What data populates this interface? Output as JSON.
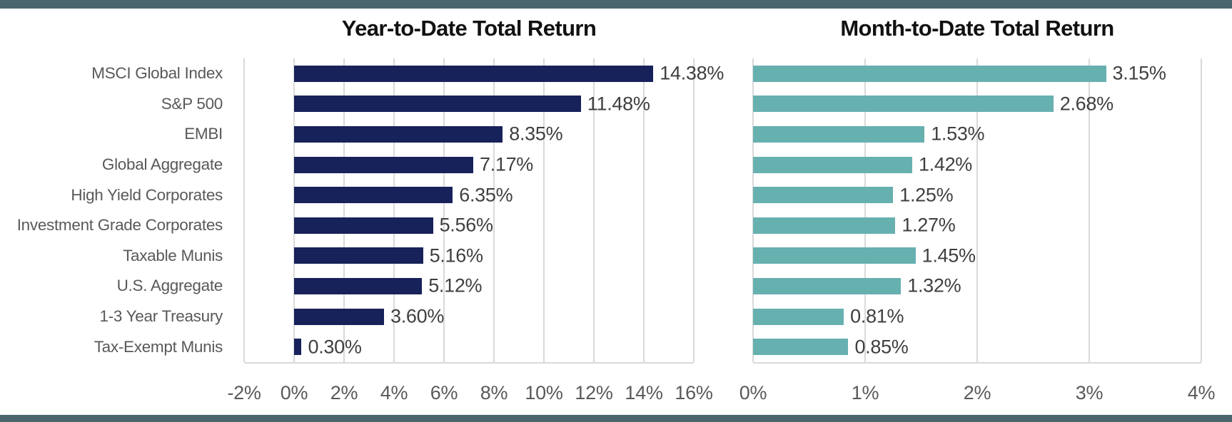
{
  "page": {
    "background": "#FFFFFF",
    "accent_strip_color": "#4A656E"
  },
  "colors": {
    "ytd_bar": "#17215A",
    "mtd_bar": "#67B0B0",
    "gridline": "#D9D9D9",
    "category_label": "#595959",
    "tick_label": "#595959",
    "value_label": "#3F3F3F",
    "title": "#111111"
  },
  "chart_data": [
    {
      "type": "bar",
      "orientation": "horizontal",
      "title": "Year-to-Date Total Return",
      "categories": [
        "MSCI Global Index",
        "S&P 500",
        "EMBI",
        "Global Aggregate",
        "High Yield Corporates",
        "Investment Grade Corporates",
        "Taxable Munis",
        "U.S. Aggregate",
        "1-3 Year Treasury",
        "Tax-Exempt Munis"
      ],
      "values": [
        14.38,
        11.48,
        8.35,
        7.17,
        6.35,
        5.56,
        5.16,
        5.12,
        3.6,
        0.3
      ],
      "value_labels": [
        "14.38%",
        "11.48%",
        "8.35%",
        "7.17%",
        "6.35%",
        "5.56%",
        "5.16%",
        "5.12%",
        "3.60%",
        "0.30%"
      ],
      "bar_color": "#17215A",
      "xlim": [
        -2,
        16
      ],
      "x_tick_values": [
        -2,
        0,
        2,
        4,
        6,
        8,
        10,
        12,
        14,
        16
      ],
      "x_ticks": [
        "-2%",
        "0%",
        "2%",
        "4%",
        "6%",
        "8%",
        "10%",
        "12%",
        "14%",
        "16%"
      ],
      "grid": true,
      "legend": "none",
      "show_category_labels": true
    },
    {
      "type": "bar",
      "orientation": "horizontal",
      "title": "Month-to-Date Total Return",
      "categories": [
        "MSCI Global Index",
        "S&P 500",
        "EMBI",
        "Global Aggregate",
        "High Yield Corporates",
        "Investment Grade Corporates",
        "Taxable Munis",
        "U.S. Aggregate",
        "1-3 Year Treasury",
        "Tax-Exempt Munis"
      ],
      "values": [
        3.15,
        2.68,
        1.53,
        1.42,
        1.25,
        1.27,
        1.45,
        1.32,
        0.81,
        0.85
      ],
      "value_labels": [
        "3.15%",
        "2.68%",
        "1.53%",
        "1.42%",
        "1.25%",
        "1.27%",
        "1.45%",
        "1.32%",
        "0.81%",
        "0.85%"
      ],
      "bar_color": "#67B0B0",
      "xlim": [
        0,
        4
      ],
      "x_tick_values": [
        0,
        1,
        2,
        3,
        4
      ],
      "x_ticks": [
        "0%",
        "1%",
        "2%",
        "3%",
        "4%"
      ],
      "grid": true,
      "legend": "none",
      "show_category_labels": false
    }
  ]
}
